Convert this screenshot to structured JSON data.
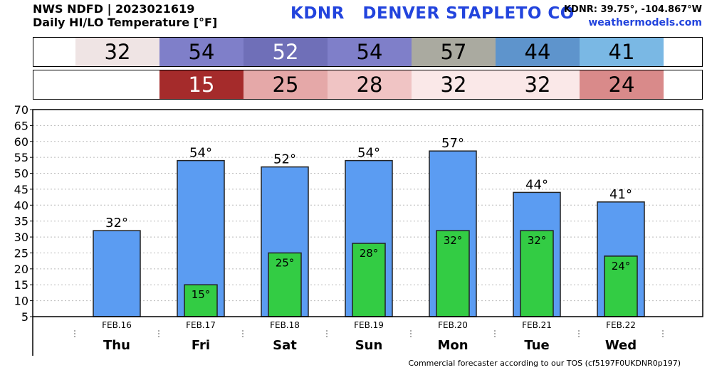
{
  "header": {
    "line1": "NWS NDFD | 2023021619",
    "line2": "Daily HI/LO Temperature [°F]",
    "station_title": "KDNR   DENVER STAPLETO CO",
    "coords": "KDNR: 39.75°, -104.867°W",
    "site": "weathermodels.com"
  },
  "hi_strip": [
    {
      "value": "32",
      "bg": "#efe4e4",
      "fg": "#000000"
    },
    {
      "value": "54",
      "bg": "#7f7fc9",
      "fg": "#000000"
    },
    {
      "value": "52",
      "bg": "#6f6fb8",
      "fg": "#ffffff"
    },
    {
      "value": "54",
      "bg": "#7f7fc9",
      "fg": "#000000"
    },
    {
      "value": "57",
      "bg": "#aaaaa0",
      "fg": "#000000"
    },
    {
      "value": "44",
      "bg": "#5e94cc",
      "fg": "#000000"
    },
    {
      "value": "41",
      "bg": "#7ab8e4",
      "fg": "#000000"
    }
  ],
  "lo_strip": [
    {
      "value": "",
      "bg": "#ffffff",
      "fg": "#000000"
    },
    {
      "value": "15",
      "bg": "#a52b2b",
      "fg": "#ffffff"
    },
    {
      "value": "25",
      "bg": "#e5a8a8",
      "fg": "#000000"
    },
    {
      "value": "28",
      "bg": "#f0c4c4",
      "fg": "#000000"
    },
    {
      "value": "32",
      "bg": "#fae8e8",
      "fg": "#000000"
    },
    {
      "value": "32",
      "bg": "#fae8e8",
      "fg": "#000000"
    },
    {
      "value": "24",
      "bg": "#d98a8a",
      "fg": "#000000"
    }
  ],
  "chart_data": {
    "type": "bar",
    "categories": [
      "Thu",
      "Fri",
      "Sat",
      "Sun",
      "Mon",
      "Tue",
      "Wed"
    ],
    "dates": [
      "FEB.16",
      "FEB.17",
      "FEB.18",
      "FEB.19",
      "FEB.20",
      "FEB.21",
      "FEB.22"
    ],
    "series": [
      {
        "values": [
          32,
          54,
          52,
          54,
          57,
          44,
          41
        ],
        "color": "#5b9cf2"
      },
      {
        "values": [
          null,
          15,
          25,
          28,
          32,
          32,
          24
        ],
        "color": "#33cc44"
      }
    ],
    "ylim": [
      5,
      70
    ],
    "yticks": [
      5,
      10,
      15,
      20,
      25,
      30,
      35,
      40,
      45,
      50,
      55,
      60,
      65,
      70
    ],
    "grid": true,
    "label_suffix": "°"
  },
  "footer": "Commercial forecaster according to our TOS (cf5197F0UKDNR0p197)"
}
